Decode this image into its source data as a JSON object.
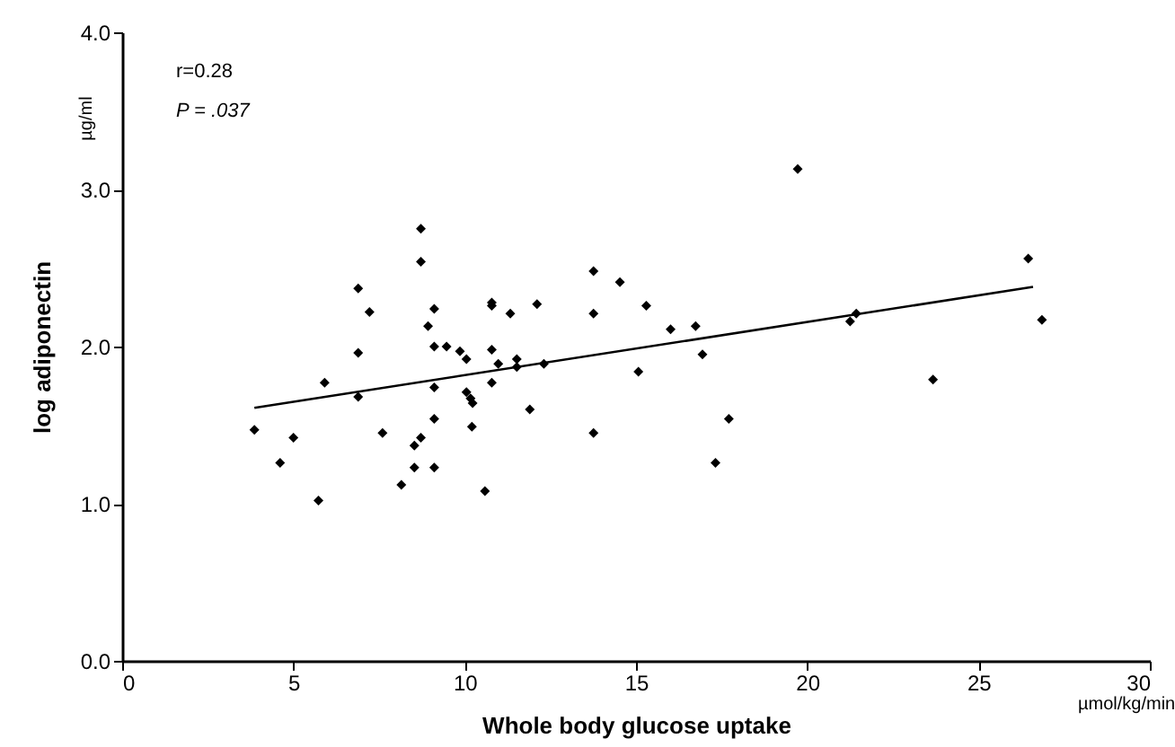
{
  "chart_data": {
    "type": "scatter",
    "xlabel": "Whole body glucose uptake",
    "ylabel": "log adiponectin",
    "annotations": [
      "r=0.28",
      "P = .037",
      "µg/ml",
      "µmol/kg/min"
    ],
    "xlim": [
      0,
      30
    ],
    "xticks": [
      0,
      5,
      10,
      15,
      20,
      25,
      30
    ],
    "ylim": [
      0,
      4
    ],
    "yticks": [
      {
        "value": 0,
        "label": "0.0"
      },
      {
        "value": 1,
        "label": "1.0"
      },
      {
        "value": 2,
        "label": "2.0"
      },
      {
        "value": 3,
        "label": "3.0"
      },
      {
        "value": 4,
        "label": "4.0"
      }
    ],
    "grid": false,
    "series": [
      {
        "color": "#000000",
        "marker": "diamond",
        "x": [
          3.86,
          4.61,
          5.0,
          5.73,
          5.91,
          6.89,
          7.22,
          6.89,
          6.89,
          7.6,
          8.15,
          8.53,
          8.53,
          8.72,
          8.72,
          8.72,
          9.11,
          8.93,
          9.11,
          9.47,
          9.11,
          9.11,
          9.11,
          9.86,
          10.05,
          10.05,
          10.17,
          10.23,
          10.21,
          10.59,
          10.79,
          10.79,
          10.79,
          10.79,
          10.98,
          11.33,
          11.52,
          11.52,
          11.9,
          12.11,
          12.31,
          13.76,
          13.76,
          13.76,
          14.53,
          15.07,
          15.3,
          16.01,
          16.74,
          16.94,
          17.32,
          17.71,
          19.72,
          21.25,
          21.43,
          23.67,
          26.45,
          26.85
        ],
        "values": [
          1.47,
          1.26,
          1.42,
          1.02,
          1.77,
          2.37,
          2.22,
          1.96,
          1.68,
          1.45,
          1.12,
          1.23,
          1.37,
          1.42,
          2.75,
          2.54,
          2.24,
          2.13,
          2.0,
          2.0,
          1.74,
          1.54,
          1.23,
          1.97,
          1.92,
          1.71,
          1.67,
          1.64,
          1.49,
          1.08,
          2.28,
          2.26,
          1.98,
          1.77,
          1.89,
          2.21,
          1.92,
          1.87,
          1.6,
          2.27,
          1.89,
          2.48,
          2.21,
          1.45,
          2.41,
          1.84,
          2.26,
          2.11,
          2.13,
          1.95,
          1.26,
          1.54,
          3.13,
          2.16,
          2.21,
          1.79,
          2.56,
          2.17
        ]
      },
      {
        "type": "line",
        "color": "#000000",
        "marker": "none",
        "line_style": "solid",
        "x": [
          3.86,
          26.59
        ],
        "values": [
          1.61,
          2.38
        ]
      }
    ]
  }
}
